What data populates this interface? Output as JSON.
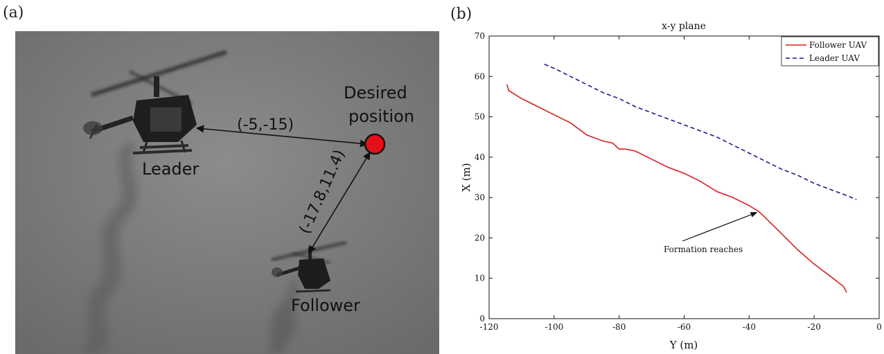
{
  "panel_a": {
    "label": "(a)",
    "leader_label": "Leader",
    "follower_label": "Follower",
    "desired_label_line1": "Desired",
    "desired_label_line2": "position",
    "vector_leader": "(-5,-15)",
    "vector_follower": "(-17.8,11.4)"
  },
  "panel_b": {
    "label": "(b)"
  },
  "colors": {
    "follower": "#d62020",
    "leader": "#1a1a8c",
    "desired_dot": "#e3101a"
  },
  "chart_data": {
    "type": "line",
    "title": "x-y plane",
    "xlabel": "Y (m)",
    "ylabel": "X (m)",
    "xlim": [
      -120,
      0
    ],
    "ylim": [
      0,
      70
    ],
    "xticks": [
      -120,
      -100,
      -80,
      -60,
      -40,
      -20,
      0
    ],
    "yticks": [
      0,
      10,
      20,
      30,
      40,
      50,
      60,
      70
    ],
    "grid": false,
    "legend_position": "top-right",
    "annotation": {
      "text": "Formation reaches",
      "point": [
        -37,
        26.5
      ]
    },
    "series": [
      {
        "name": "Follower UAV",
        "style": "solid",
        "color": "#d62020",
        "x": [
          -114.5,
          -114,
          -110,
          -105,
          -100,
          -95,
          -90,
          -85,
          -82,
          -80,
          -78,
          -75,
          -70,
          -65,
          -60,
          -55,
          -50,
          -45,
          -40,
          -37,
          -35,
          -30,
          -25,
          -20,
          -15,
          -11,
          -10
        ],
        "y": [
          58,
          56.5,
          54.5,
          52.5,
          50.5,
          48.5,
          45.5,
          44,
          43.5,
          42,
          42,
          41.5,
          39.5,
          37.5,
          36,
          34,
          31.5,
          30,
          28,
          26.5,
          25,
          21,
          17,
          13.5,
          10.5,
          8,
          6.5
        ]
      },
      {
        "name": "Leader UAV",
        "style": "dashed",
        "color": "#1a1a8c",
        "x": [
          -103,
          -100,
          -95,
          -90,
          -85,
          -80,
          -75,
          -70,
          -65,
          -60,
          -55,
          -50,
          -45,
          -40,
          -35,
          -30,
          -25,
          -20,
          -15,
          -10,
          -7
        ],
        "y": [
          63,
          62,
          60,
          58,
          56,
          54.5,
          52.5,
          51,
          49.5,
          48,
          46.5,
          45,
          43,
          41,
          39,
          37,
          35.5,
          33.5,
          32,
          30.5,
          29.5
        ]
      }
    ]
  }
}
